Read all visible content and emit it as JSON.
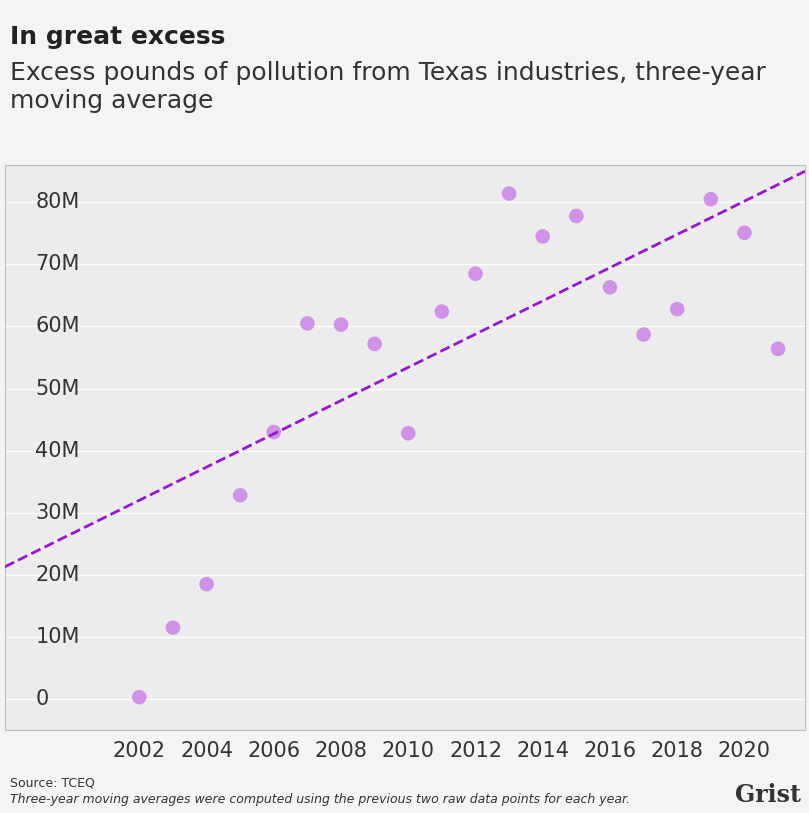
{
  "chart_data": {
    "type": "scatter",
    "title": "In great excess",
    "subtitle": "Excess pounds of pollution from Texas industries, three-year moving average",
    "source": "Source: TCEQ",
    "note": "Three-year moving averages were computed using the previous two raw data points for each year.",
    "brand": "Grist",
    "series": [
      {
        "type": "scatter",
        "color": "#cc88e8",
        "marker": "circle",
        "x": [
          2002,
          2003,
          2004,
          2005,
          2006,
          2007,
          2008,
          2009,
          2010,
          2011,
          2012,
          2013,
          2014,
          2015,
          2016,
          2017,
          2018,
          2019,
          2020,
          2021
        ],
        "values": [
          300000,
          11500000,
          18500000,
          32800000,
          43000000,
          60500000,
          60300000,
          57200000,
          42800000,
          62400000,
          68500000,
          81400000,
          74500000,
          77800000,
          66300000,
          58700000,
          62800000,
          80500000,
          75100000,
          56400000
        ]
      },
      {
        "type": "line",
        "color": "#9b14d6",
        "line_style": "dashed",
        "x": [
          1998,
          2021.8
        ],
        "values": [
          21300000,
          85000000
        ]
      }
    ],
    "xlim": [
      1998,
      2021.8
    ],
    "xticks": [
      2002,
      2004,
      2006,
      2008,
      2010,
      2012,
      2014,
      2016,
      2018,
      2020
    ],
    "ylim": [
      -5000000,
      86000000
    ],
    "yticks": [
      0,
      {
        "value": 10000000,
        "label": "10M"
      },
      {
        "value": 20000000,
        "label": "20M"
      },
      {
        "value": 30000000,
        "label": "30M"
      },
      {
        "value": 40000000,
        "label": "40M"
      },
      {
        "value": 50000000,
        "label": "50M"
      },
      {
        "value": 60000000,
        "label": "60M"
      },
      {
        "value": 70000000,
        "label": "70M"
      },
      {
        "value": 80000000,
        "label": "80M"
      }
    ],
    "grid": true
  }
}
